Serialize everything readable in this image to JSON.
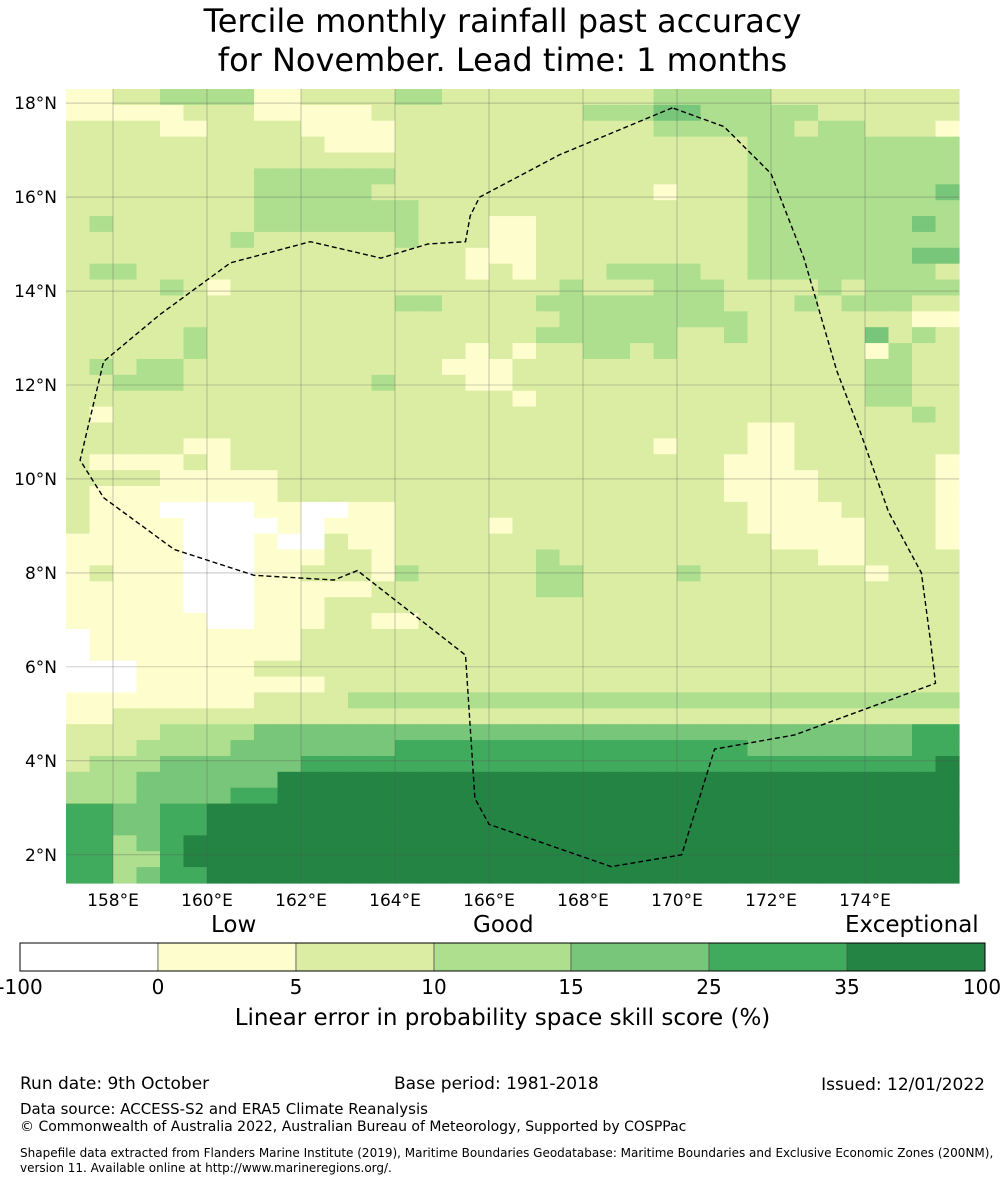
{
  "title": {
    "line1": "Tercile monthly rainfall past accuracy",
    "line2": "for November. Lead time: 1 months"
  },
  "map": {
    "lon_range": [
      157,
      176
    ],
    "lat_range": [
      1.4,
      18.3
    ],
    "x_ticks": [
      {
        "value": 158,
        "label": "158°E"
      },
      {
        "value": 160,
        "label": "160°E"
      },
      {
        "value": 162,
        "label": "162°E"
      },
      {
        "value": 164,
        "label": "164°E"
      },
      {
        "value": 166,
        "label": "166°E"
      },
      {
        "value": 168,
        "label": "168°E"
      },
      {
        "value": 170,
        "label": "170°E"
      },
      {
        "value": 172,
        "label": "172°E"
      },
      {
        "value": 174,
        "label": "174°E"
      }
    ],
    "y_ticks": [
      {
        "value": 2,
        "label": "2°N"
      },
      {
        "value": 4,
        "label": "4°N"
      },
      {
        "value": 6,
        "label": "6°N"
      },
      {
        "value": 8,
        "label": "8°N"
      },
      {
        "value": 10,
        "label": "10°N"
      },
      {
        "value": 12,
        "label": "12°N"
      },
      {
        "value": 14,
        "label": "14°N"
      },
      {
        "value": 16,
        "label": "16°N"
      },
      {
        "value": 18,
        "label": "18°N"
      }
    ],
    "boundary_lonlat": [
      [
        169.9,
        17.9
      ],
      [
        167.5,
        16.9
      ],
      [
        165.8,
        16.0
      ],
      [
        165.6,
        15.6
      ],
      [
        165.5,
        15.05
      ],
      [
        164.7,
        15.0
      ],
      [
        163.7,
        14.7
      ],
      [
        162.2,
        15.05
      ],
      [
        160.5,
        14.6
      ],
      [
        159.0,
        13.5
      ],
      [
        157.8,
        12.5
      ],
      [
        157.3,
        10.4
      ],
      [
        157.8,
        9.6
      ],
      [
        159.3,
        8.5
      ],
      [
        161.0,
        7.95
      ],
      [
        162.7,
        7.85
      ],
      [
        163.2,
        8.05
      ],
      [
        165.5,
        6.25
      ],
      [
        165.7,
        3.2
      ],
      [
        166.0,
        2.65
      ],
      [
        168.6,
        1.75
      ],
      [
        170.1,
        2.0
      ],
      [
        170.8,
        4.25
      ],
      [
        172.5,
        4.55
      ],
      [
        175.5,
        5.65
      ],
      [
        175.4,
        6.5
      ],
      [
        175.2,
        8.0
      ],
      [
        174.5,
        9.3
      ],
      [
        173.9,
        11.0
      ],
      [
        173.4,
        12.3
      ],
      [
        172.7,
        14.7
      ],
      [
        172.0,
        16.5
      ],
      [
        171.0,
        17.5
      ],
      [
        169.9,
        17.9
      ]
    ],
    "bin_colors": [
      "#ffffff",
      "#fdfdcd",
      "#daeda3",
      "#addf8e",
      "#78c679",
      "#41ab5d",
      "#238443"
    ],
    "grid_rows": [
      "11223333112222332222222223333322222222",
      "11111222111112222222223334433333222222",
      "22221122221111222222222223333332332221",
      "22222222222111222222222222222333333333",
      "22222222222222222222222222222333333333",
      "22222222333333222222222222222333333333",
      "22222222333332222222222221222333333334",
      "22222222333333322222222222222333333333",
      "23222222333333322211222222222333333343",
      "22222223222222322211222222222333333333",
      "22222222222222222111222222222333333344",
      "23322222222222222121222333322333333332",
      "22223212222222222222232223332222323333",
      "22222222222222332222333333332223233322",
      "22222222222222222222233333333222222211",
      "22222322222222222222333333223222224232",
      "22222322222222222121223323222222221322",
      "23233222222222221112222222222222223322",
      "22333222222223222112222222222222223322",
      "22222222222222222221222222222222223322",
      "21222222222222222222222222222222222232",
      "22222222222222222222222222222112222222",
      "22222112222222222222222221222112222222",
      "21111212222222222222222222221112222221",
      "22221111122222222222222222221111222221",
      "21111111122222222222222222221111222221",
      "21110000110011222222222222222111122221",
      "21111000010111222212222222222111112221",
      "11111000100211222222222222222211112221",
      "11111000111221222222322222222222112222",
      "12111000112221322222332222322222221222",
      "11111000111112222222332222222222222222",
      "11111000111222222222222222222222222222",
      "11111100111221122222222222222222222222",
      "01111111112222222222222222222222222222",
      "01111111112222222222222222222222222222",
      "00011111222222222222222222222222222222",
      "00011111111222222222222222222222222222",
      "11111111222233333333333333333333333333",
      "11222222222222222222222222222222222222",
      "22223333444444444444444444444444444455",
      "22233334444444555555555555555444444455",
      "23334444445555555555555555555555555556",
      "33344444466666666666666666666666666666",
      "33344445566666666666666666666666666666",
      "55445566666666666666666666666666666666",
      "55445566666666666666666666666666666666",
      "55345666666666666666666666666666666666",
      "55335666666666666666666666666666666666",
      "55345566666666666666666666666666666666"
    ]
  },
  "colorbar": {
    "head_low": "Low",
    "head_good": "Good",
    "head_exceptional": "Exceptional",
    "ticks": [
      "-100",
      "0",
      "5",
      "10",
      "15",
      "25",
      "35",
      "100"
    ],
    "label": "Linear error in probability space skill score (%)"
  },
  "footer": {
    "run_date": "Run date: 9th October",
    "base_period": "Base period: 1981-2018",
    "issued": "Issued: 12/01/2022",
    "data_source": "Data source: ACCESS-S2 and ERA5 Climate Reanalysis",
    "copyright": "© Commonwealth of Australia 2022, Australian Bureau of Meteorology, Supported by COSPPac",
    "shapefile": "Shapefile data extracted from Flanders Marine Institute (2019), Maritime Boundaries Geodatabase: Maritime Boundaries and Exclusive Economic Zones (200NM), version 11. Available online at http://www.marineregions.org/."
  }
}
